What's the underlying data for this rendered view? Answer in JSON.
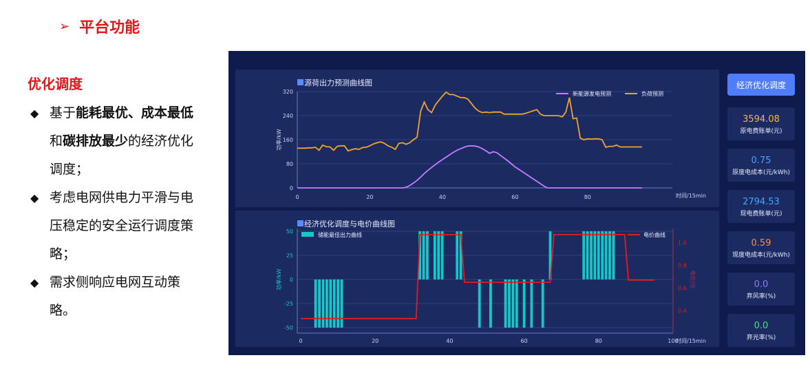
{
  "heading": {
    "arrow": "➢",
    "title": "平台功能"
  },
  "subtitle": "优化调度",
  "bullets": [
    {
      "symbol": "◆",
      "parts": [
        {
          "t": "基于",
          "b": false
        },
        {
          "t": "能耗最优、成本最低",
          "b": true
        },
        {
          "t": "和",
          "b": false
        },
        {
          "t": "碳排放最少",
          "b": true
        },
        {
          "t": "的经济优化调度；",
          "b": false
        }
      ]
    },
    {
      "symbol": "◆",
      "parts": [
        {
          "t": "考虑电网供电力平滑与电压稳定的安全运行调度策略；",
          "b": false
        }
      ]
    },
    {
      "symbol": "◆",
      "parts": [
        {
          "t": "需求侧响应电网互动策略。",
          "b": false
        }
      ]
    }
  ],
  "side": {
    "button": "经济优化调度",
    "cards": [
      {
        "value": "3594.08",
        "label": "原电费账单(元)",
        "color": "#f5b84a"
      },
      {
        "value": "0.75",
        "label": "原度电成本(元/kWh)",
        "color": "#3ea8ff"
      },
      {
        "value": "2794.53",
        "label": "现电费账单(元)",
        "color": "#3ea8ff"
      },
      {
        "value": "0.59",
        "label": "现度电成本(元/kWh)",
        "color": "#ff8c3a"
      },
      {
        "value": "0.0",
        "label": "弃风率(%)",
        "color": "#8f7bff"
      },
      {
        "value": "0.0",
        "label": "弃光率(%)",
        "color": "#4ee17a"
      }
    ]
  },
  "chart_data": [
    {
      "type": "line",
      "title": "源荷出力预测曲线图",
      "ylabel": "功率/kW",
      "xlabel": "时间/15min",
      "ylim": [
        0,
        320
      ],
      "yticks": [
        "0",
        "80",
        "160",
        "240",
        "320"
      ],
      "xlim": [
        0,
        96
      ],
      "xticks": [
        "0",
        "20",
        "40",
        "60",
        "80"
      ],
      "legend": "top-right",
      "grid": true,
      "series": [
        {
          "name": "新能源发电预测",
          "color": "#c77dff",
          "values": [
            0,
            0,
            0,
            0,
            0,
            0,
            0,
            0,
            0,
            0,
            0,
            0,
            0,
            0,
            0,
            0,
            0,
            0,
            0,
            0,
            0,
            0,
            0,
            0,
            0,
            0,
            0,
            0,
            0,
            0,
            2,
            8,
            16,
            25,
            36,
            48,
            58,
            68,
            77,
            86,
            94,
            102,
            110,
            118,
            125,
            130,
            135,
            139,
            140,
            139,
            136,
            130,
            123,
            115,
            120,
            117,
            108,
            99,
            90,
            80,
            70,
            62,
            54,
            46,
            38,
            30,
            22,
            14,
            6,
            0,
            0,
            0,
            0,
            0,
            0,
            0,
            0,
            0,
            0,
            0,
            0,
            0,
            0,
            0,
            0,
            0,
            0,
            0,
            0,
            0,
            0,
            0,
            0,
            0,
            0,
            0
          ]
        },
        {
          "name": "负荷预测",
          "color": "#f2a32c",
          "values": [
            132,
            132,
            132,
            133,
            133,
            135,
            125,
            142,
            137,
            136,
            125,
            138,
            140,
            140,
            123,
            127,
            130,
            128,
            134,
            135,
            140,
            146,
            150,
            153,
            148,
            140,
            135,
            128,
            148,
            150,
            145,
            150,
            160,
            168,
            255,
            285,
            260,
            250,
            275,
            290,
            305,
            318,
            310,
            310,
            305,
            300,
            300,
            295,
            280,
            265,
            255,
            250,
            252,
            250,
            252,
            252,
            252,
            245,
            245,
            245,
            245,
            245,
            245,
            248,
            252,
            256,
            260,
            245,
            240,
            240,
            240,
            240,
            240,
            236,
            252,
            300,
            230,
            232,
            165,
            160,
            163,
            162,
            163,
            163,
            160,
            135,
            138,
            138,
            142,
            136,
            136,
            136,
            136,
            136,
            136,
            136
          ]
        }
      ]
    },
    {
      "type": "bar",
      "title": "经济优化调度与电价曲线图",
      "ylabel": "功率/kW",
      "ylabel2": "电价/元",
      "xlabel": "时间/15min",
      "ylim": [
        -50,
        50
      ],
      "yticks": [
        "-50",
        "-25",
        "0",
        "25",
        "50"
      ],
      "y2lim": [
        0.25,
        1.1
      ],
      "y2ticks": [
        "0.4",
        "0.6",
        "0.8",
        "1.0"
      ],
      "xlim": [
        0,
        100
      ],
      "xticks": [
        "0",
        "20",
        "40",
        "60",
        "80",
        "100"
      ],
      "legend": "top",
      "grid": true,
      "series": [
        {
          "name": "储能最佳出力曲线",
          "color": "#12c8c8",
          "type": "bar",
          "values": [
            0,
            0,
            0,
            0,
            -50,
            -50,
            -50,
            -50,
            -50,
            -50,
            -50,
            -50,
            0,
            0,
            0,
            0,
            0,
            0,
            0,
            0,
            0,
            0,
            0,
            0,
            0,
            0,
            0,
            0,
            0,
            0,
            0,
            0,
            50,
            50,
            50,
            0,
            50,
            50,
            50,
            0,
            0,
            0,
            50,
            50,
            0,
            0,
            0,
            0,
            -50,
            0,
            0,
            -50,
            0,
            0,
            0,
            -50,
            -50,
            -50,
            -50,
            0,
            -50,
            0,
            -50,
            0,
            0,
            -50,
            0,
            0,
            0,
            0,
            0,
            0,
            0,
            0,
            0,
            0,
            0,
            0,
            0,
            0,
            0,
            0,
            0,
            0,
            0,
            0,
            0,
            0,
            0,
            0,
            0,
            0,
            0,
            0,
            0,
            0,
            0,
            0,
            0,
            0
          ],
          "overrides": {
            "67": 50,
            "76": 50,
            "77": 50,
            "78": 50,
            "79": 50,
            "80": 50,
            "81": 50,
            "82": 50,
            "83": 50,
            "84": 50
          }
        },
        {
          "name": "电价曲线",
          "color": "#e31b23",
          "type": "line",
          "points": [
            [
              0,
              0.33
            ],
            [
              31,
              0.33
            ],
            [
              32,
              1.07
            ],
            [
              43,
              1.07
            ],
            [
              44,
              0.65
            ],
            [
              67,
              0.65
            ],
            [
              68,
              1.07
            ],
            [
              87,
              1.07
            ],
            [
              88,
              0.67
            ],
            [
              95,
              0.67
            ]
          ]
        }
      ]
    }
  ]
}
